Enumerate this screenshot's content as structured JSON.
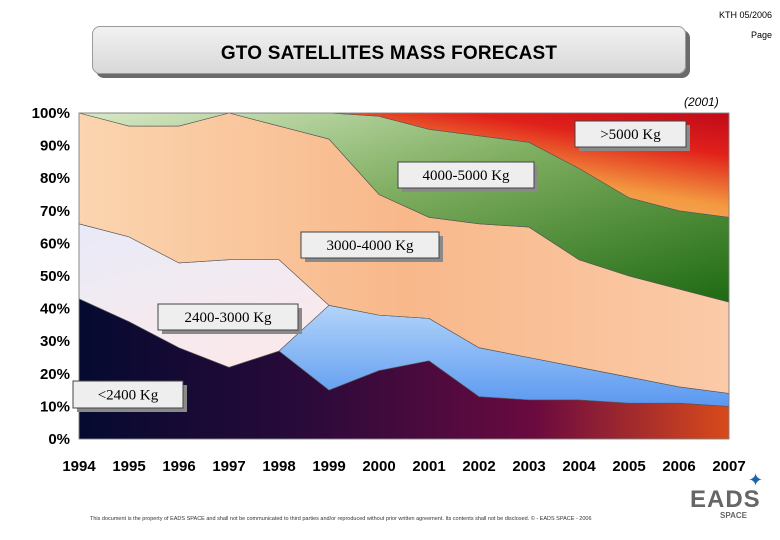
{
  "header": {
    "ref": "KTH 05/2006",
    "page_label": "Page"
  },
  "title_box": {
    "title": "GTO SATELLITES MASS FORECAST"
  },
  "year_note": "(2001)",
  "chart_data": {
    "type": "area",
    "stacked": true,
    "title": "GTO SATELLITES MASS FORECAST",
    "x": [
      1994,
      1995,
      1996,
      1997,
      1998,
      1999,
      2000,
      2001,
      2002,
      2003,
      2004,
      2005,
      2006,
      2007
    ],
    "x_tick_labels": [
      "1994",
      "1995",
      "1996",
      "1997",
      "1998",
      "1999",
      "2000",
      "2001",
      "2002",
      "2003",
      "2004",
      "2005",
      "2006",
      "2007"
    ],
    "y_tick_labels": [
      "0%",
      "10%",
      "20%",
      "30%",
      "40%",
      "50%",
      "60%",
      "70%",
      "80%",
      "90%",
      "100%"
    ],
    "ylim": [
      0,
      100
    ],
    "grid": false,
    "series": [
      {
        "name": "<2400 Kg",
        "values": [
          43,
          36,
          28,
          22,
          27,
          15,
          21,
          24,
          13,
          12,
          12,
          11,
          11,
          10
        ]
      },
      {
        "name": "2400-3000 Kg",
        "values": [
          0,
          0,
          0,
          0,
          0,
          26,
          17,
          13,
          15,
          13,
          10,
          8,
          5,
          4
        ]
      },
      {
        "name": "3000-4000 Kg",
        "values": [
          23,
          26,
          26,
          33,
          28,
          0,
          0,
          0,
          0,
          0,
          0,
          0,
          0,
          0
        ]
      },
      {
        "name": "4000-5000 Kg",
        "values": [
          34,
          34,
          42,
          45,
          41,
          51,
          37,
          31,
          38,
          40,
          33,
          31,
          30,
          28
        ]
      },
      {
        "name": ">5000 Kg",
        "values": [
          0,
          4,
          0,
          0,
          0,
          8,
          24,
          27,
          27,
          26,
          28,
          24,
          24,
          26
        ]
      }
    ],
    "boundaries": [
      [
        43,
        36,
        28,
        22,
        27,
        15,
        21,
        24,
        13,
        12,
        12,
        11,
        11,
        10
      ],
      [
        43,
        36,
        28,
        22,
        27,
        41,
        38,
        37,
        28,
        25,
        22,
        19,
        16,
        14
      ],
      [
        66,
        62,
        54,
        55,
        55,
        41,
        38,
        37,
        28,
        25,
        22,
        19,
        16,
        14
      ],
      [
        100,
        96,
        96,
        100,
        96,
        92,
        75,
        68,
        66,
        65,
        55,
        50,
        46,
        42
      ],
      [
        100,
        100,
        100,
        100,
        100,
        100,
        99,
        95,
        93,
        91,
        83,
        74,
        70,
        68
      ]
    ],
    "labels": [
      {
        "text": "<2400 Kg"
      },
      {
        "text": "2400-3000 Kg"
      },
      {
        "text": "3000-4000 Kg"
      },
      {
        "text": "4000-5000 Kg"
      },
      {
        "text": ">5000 Kg"
      }
    ],
    "colors": {
      "s1": "#3a0a3a",
      "s2": "#7fb0f0",
      "s3": "#f4e8f2",
      "s4": "#f9c29a",
      "s5": "#3e7a2a",
      "top": "#e8452a",
      "band_light": "#c9e0b8"
    }
  },
  "footer": {
    "disclaimer": "This document is the property of EADS SPACE and shall not be communicated to third parties and/or reproduced without prior written agreement. Its contents shall not be disclosed.  © - EADS SPACE - 2006"
  },
  "logo": {
    "name": "EADS",
    "sub": "SPACE"
  }
}
